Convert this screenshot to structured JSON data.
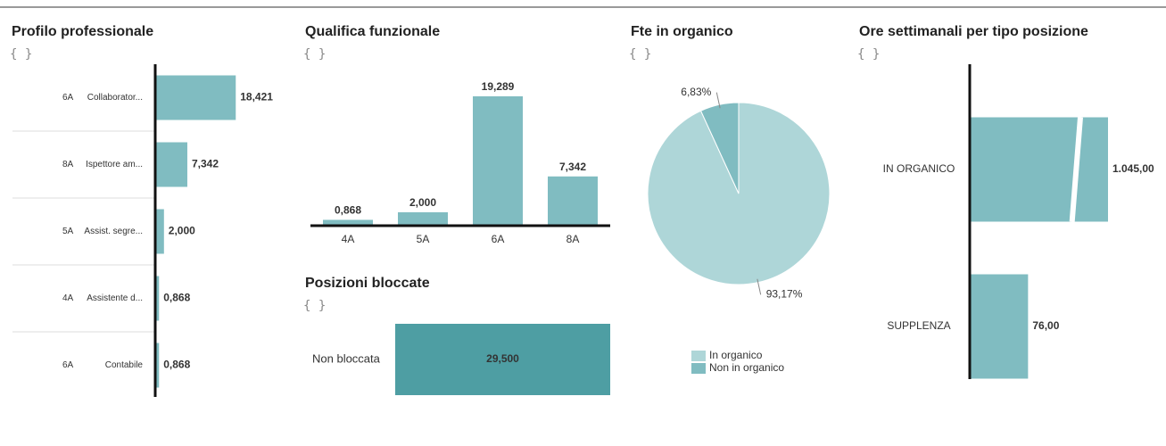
{
  "chart_data": [
    {
      "type": "bar",
      "orientation": "horizontal",
      "title": "Profilo professionale",
      "subtitle": "{ }",
      "codes": [
        "6A",
        "8A",
        "5A",
        "4A",
        "6A"
      ],
      "categories": [
        "Collaborator...",
        "Ispettore am...",
        "Assist. segre...",
        "Assistente d...",
        "Contabile"
      ],
      "values": [
        18.421,
        7.342,
        2.0,
        0.868,
        0.868
      ],
      "value_labels": [
        "18,421",
        "7,342",
        "2,000",
        "0,868",
        "0,868"
      ],
      "color": "#80bcc1"
    },
    {
      "type": "bar",
      "orientation": "vertical",
      "title": "Qualifica funzionale",
      "subtitle": "{ }",
      "categories": [
        "4A",
        "5A",
        "6A",
        "8A"
      ],
      "values": [
        0.868,
        2.0,
        19.289,
        7.342
      ],
      "value_labels": [
        "0,868",
        "2,000",
        "19,289",
        "7,342"
      ],
      "color": "#80bcc1"
    },
    {
      "type": "bar",
      "orientation": "horizontal",
      "title": "Posizioni bloccate",
      "subtitle": "{ }",
      "categories": [
        "Non bloccata"
      ],
      "values": [
        29.5
      ],
      "value_labels": [
        "29,500"
      ],
      "color": "#4e9ea3"
    },
    {
      "type": "pie",
      "title": "Fte in organico",
      "subtitle": "{ }",
      "categories": [
        "In organico",
        "Non in organico"
      ],
      "values": [
        93.17,
        6.83
      ],
      "value_labels": [
        "93,17%",
        "6,83%"
      ],
      "colors": [
        "#aed6d8",
        "#80bcc1"
      ],
      "legend": "bottom"
    },
    {
      "type": "bar",
      "orientation": "horizontal",
      "title": "Ore settimanali per tipo posizione",
      "subtitle": "{ }",
      "categories": [
        "IN ORGANICO",
        "SUPPLENZA"
      ],
      "values": [
        1045,
        76
      ],
      "value_labels": [
        "1.045,00",
        "76,00"
      ],
      "color": "#80bcc1",
      "axis_break": true
    }
  ]
}
